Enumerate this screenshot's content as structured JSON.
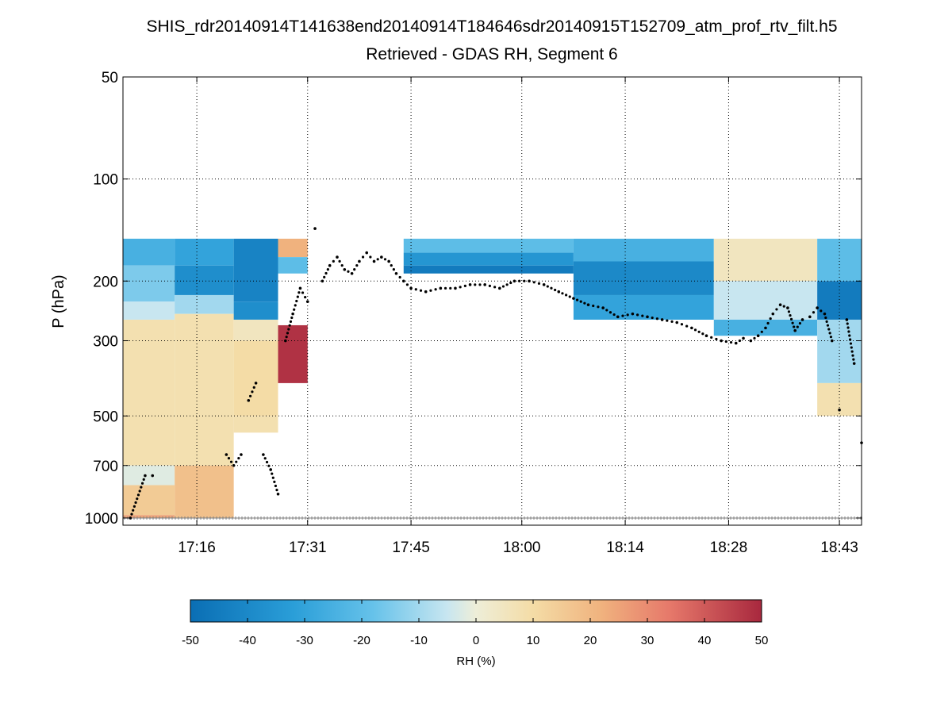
{
  "chart_data": {
    "type": "heatmap",
    "title": "SHIS_rdr20140914T141638end20140914T184646sdr20140915T152709_atm_prof_rtv_filt.h5",
    "subtitle": "Retrieved - GDAS RH, Segment 6",
    "ylabel": "P (hPa)",
    "y_scale": "log",
    "y_reversed": true,
    "ylim": [
      50,
      1050
    ],
    "xlim": [
      "17:06",
      "18:46"
    ],
    "x_ticks": [
      "17:16",
      "17:31",
      "17:45",
      "18:00",
      "18:14",
      "18:28",
      "18:43"
    ],
    "y_ticks": [
      50,
      100,
      200,
      300,
      500,
      700,
      1000
    ],
    "grid": true,
    "colorbar": {
      "label": "RH (%)",
      "range": [
        -50,
        50
      ],
      "ticks": [
        -50,
        -40,
        -30,
        -20,
        -10,
        0,
        10,
        20,
        30,
        40,
        50
      ],
      "colormap": "blue-white-red",
      "orientation": "horizontal",
      "placement": "bottom"
    },
    "field": {
      "description_columns": [
        {
          "x": [
            "17:06",
            "17:13"
          ],
          "rh_by_pressure": [
            [
              150,
              180,
              -25
            ],
            [
              180,
              230,
              -15
            ],
            [
              230,
              260,
              -5
            ],
            [
              260,
              700,
              8
            ],
            [
              700,
              800,
              -2
            ],
            [
              800,
              980,
              15
            ],
            [
              980,
              1000,
              25
            ]
          ]
        },
        {
          "x": [
            "17:13",
            "17:21"
          ],
          "rh_by_pressure": [
            [
              150,
              180,
              -30
            ],
            [
              180,
              220,
              -38
            ],
            [
              220,
              250,
              -10
            ],
            [
              250,
              700,
              8
            ],
            [
              700,
              1000,
              18
            ]
          ]
        },
        {
          "x": [
            "17:21",
            "17:27"
          ],
          "rh_by_pressure": [
            [
              150,
              230,
              -42
            ],
            [
              230,
              260,
              -38
            ],
            [
              260,
              300,
              5
            ],
            [
              300,
              500,
              10
            ],
            [
              500,
              560,
              8
            ]
          ]
        },
        {
          "x": [
            "17:27",
            "17:31"
          ],
          "rh_by_pressure": [
            [
              150,
              170,
              22
            ],
            [
              170,
              190,
              -20
            ],
            [
              270,
              400,
              48
            ]
          ]
        },
        {
          "x": [
            "17:44",
            "18:07"
          ],
          "rh_by_pressure": [
            [
              150,
              165,
              -20
            ],
            [
              165,
              180,
              -35
            ],
            [
              180,
              190,
              -45
            ]
          ]
        },
        {
          "x": [
            "18:07",
            "18:26"
          ],
          "rh_by_pressure": [
            [
              150,
              175,
              -25
            ],
            [
              175,
              220,
              -40
            ],
            [
              220,
              260,
              -30
            ]
          ]
        },
        {
          "x": [
            "18:26",
            "18:40"
          ],
          "rh_by_pressure": [
            [
              150,
              200,
              5
            ],
            [
              200,
              260,
              -5
            ],
            [
              260,
              290,
              -25
            ]
          ]
        },
        {
          "x": [
            "18:40",
            "18:46"
          ],
          "rh_by_pressure": [
            [
              150,
              200,
              -20
            ],
            [
              200,
              260,
              -45
            ],
            [
              260,
              400,
              -10
            ],
            [
              400,
              500,
              8
            ]
          ]
        }
      ]
    },
    "series": [
      {
        "marker": "dot",
        "color": "#000000",
        "x": [
          "17:07",
          "17:09",
          "17:10",
          "17:20",
          "17:21",
          "17:22",
          "17:23",
          "17:24",
          "17:25",
          "17:26",
          "17:27",
          "17:28",
          "17:29",
          "17:30",
          "17:31",
          "17:32",
          "17:33",
          "17:34",
          "17:35",
          "17:36",
          "17:37",
          "17:38",
          "17:39",
          "17:40",
          "17:41",
          "17:42",
          "17:43",
          "17:44",
          "17:45",
          "17:47",
          "17:49",
          "17:51",
          "17:53",
          "17:55",
          "17:57",
          "17:59",
          "18:01",
          "18:03",
          "18:05",
          "18:07",
          "18:09",
          "18:11",
          "18:13",
          "18:15",
          "18:17",
          "18:19",
          "18:21",
          "18:23",
          "18:25",
          "18:27",
          "18:29",
          "18:30",
          "18:31",
          "18:32",
          "18:33",
          "18:34",
          "18:35",
          "18:36",
          "18:37",
          "18:38",
          "18:39",
          "18:40",
          "18:41",
          "18:42",
          "18:43",
          "18:44",
          "18:45",
          "18:46"
        ],
        "y": [
          1000,
          750,
          750,
          650,
          700,
          650,
          450,
          400,
          650,
          720,
          850,
          300,
          250,
          210,
          230,
          140,
          200,
          180,
          170,
          185,
          190,
          175,
          165,
          175,
          170,
          175,
          190,
          200,
          210,
          215,
          210,
          210,
          205,
          205,
          210,
          200,
          200,
          205,
          215,
          225,
          235,
          240,
          255,
          250,
          255,
          260,
          265,
          275,
          290,
          300,
          305,
          295,
          300,
          290,
          275,
          250,
          235,
          240,
          280,
          260,
          255,
          240,
          250,
          300,
          480,
          260,
          350,
          600
        ]
      },
      {
        "marker": "plus",
        "color": "#808080",
        "x": [
          "17:06",
          "18:46"
        ],
        "y": [
          1000,
          1000
        ]
      }
    ]
  }
}
